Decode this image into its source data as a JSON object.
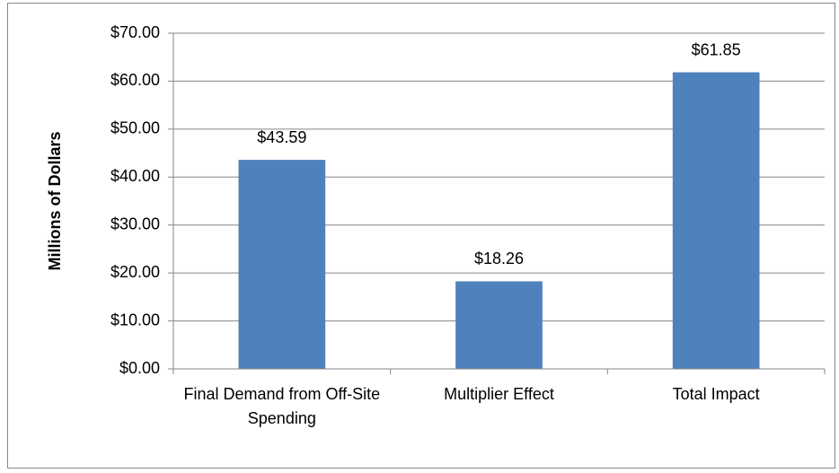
{
  "chart_data": {
    "type": "bar",
    "y_label": "Millions of Dollars",
    "categories": [
      "Final Demand from Off-Site Spending",
      "Multiplier Effect",
      "Total Impact"
    ],
    "values": [
      43.59,
      18.26,
      61.85
    ],
    "value_labels": [
      "$43.59",
      "$18.26",
      "$61.85"
    ],
    "color": "#4f81bd",
    "ylim": [
      0,
      70
    ],
    "yticks": [
      {
        "value": 0,
        "label": "$0.00"
      },
      {
        "value": 10,
        "label": "$10.00"
      },
      {
        "value": 20,
        "label": "$20.00"
      },
      {
        "value": 30,
        "label": "$30.00"
      },
      {
        "value": 40,
        "label": "$40.00"
      },
      {
        "value": 50,
        "label": "$50.00"
      },
      {
        "value": 60,
        "label": "$60.00"
      },
      {
        "value": 70,
        "label": "$70.00"
      }
    ],
    "grid": true
  }
}
